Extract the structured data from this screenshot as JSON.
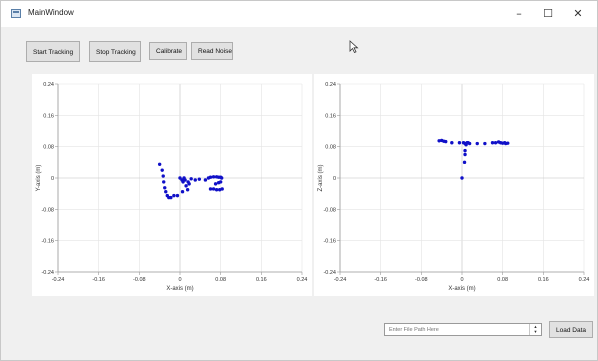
{
  "window": {
    "title": "MainWindow",
    "minimize_glyph": "–",
    "maximize_glyph": "☐",
    "close_glyph": "✕"
  },
  "toolbar": {
    "start_label": "Start Tracking",
    "stop_label": "Stop Tracking",
    "calibrate_label": "Calibrate",
    "read_noise_label": "Read Noise"
  },
  "icons": {
    "app": "app-window-icon",
    "cursor": "mouse-pointer-icon",
    "spin": "spin-arrows-icon"
  },
  "colors": {
    "points": "#1010c8",
    "grid": "#e4e4e4",
    "axis": "#999999",
    "zero_line": "#bfbfbf"
  },
  "chart_data": [
    {
      "type": "scatter",
      "xlabel": "X-axis (m)",
      "ylabel": "Y-axis (m)",
      "xlim": [
        -0.24,
        0.24
      ],
      "ylim": [
        -0.24,
        0.24
      ],
      "x_ticks": [
        "-0.24",
        "-0.16",
        "-0.08",
        "0",
        "0.08",
        "0.16",
        "0.24"
      ],
      "y_ticks": [
        "0.24",
        "0.16",
        "0.08",
        "0",
        "-0.08",
        "-0.16",
        "-0.24"
      ],
      "grid": true,
      "points": [
        [
          -0.04,
          0.035
        ],
        [
          -0.035,
          0.02
        ],
        [
          -0.033,
          0.005
        ],
        [
          -0.032,
          -0.01
        ],
        [
          -0.03,
          -0.025
        ],
        [
          -0.028,
          -0.035
        ],
        [
          -0.025,
          -0.045
        ],
        [
          -0.022,
          -0.05
        ],
        [
          -0.018,
          -0.05
        ],
        [
          -0.012,
          -0.045
        ],
        [
          -0.005,
          -0.045
        ],
        [
          0.0,
          0.0
        ],
        [
          0.004,
          -0.005
        ],
        [
          0.006,
          -0.01
        ],
        [
          0.008,
          0.0
        ],
        [
          0.01,
          -0.005
        ],
        [
          0.012,
          -0.02
        ],
        [
          0.016,
          -0.01
        ],
        [
          0.018,
          -0.015
        ],
        [
          0.022,
          -0.002
        ],
        [
          0.005,
          -0.035
        ],
        [
          0.015,
          -0.03
        ],
        [
          0.03,
          -0.005
        ],
        [
          0.038,
          -0.003
        ],
        [
          0.05,
          -0.005
        ],
        [
          0.056,
          0.0
        ],
        [
          0.06,
          0.002
        ],
        [
          0.066,
          0.003
        ],
        [
          0.072,
          0.003
        ],
        [
          0.076,
          0.002
        ],
        [
          0.08,
          0.002
        ],
        [
          0.082,
          0.0
        ],
        [
          0.07,
          -0.015
        ],
        [
          0.076,
          -0.012
        ],
        [
          0.08,
          -0.01
        ],
        [
          0.06,
          -0.028
        ],
        [
          0.066,
          -0.028
        ],
        [
          0.072,
          -0.03
        ],
        [
          0.078,
          -0.03
        ],
        [
          0.083,
          -0.028
        ]
      ]
    },
    {
      "type": "scatter",
      "xlabel": "X-axis (m)",
      "ylabel": "Z-axis (m)",
      "xlim": [
        -0.24,
        0.24
      ],
      "ylim": [
        -0.24,
        0.24
      ],
      "x_ticks": [
        "-0.24",
        "-0.16",
        "-0.08",
        "0",
        "0.08",
        "0.16",
        "0.24"
      ],
      "y_ticks": [
        "0.24",
        "0.16",
        "0.08",
        "0",
        "-0.08",
        "-0.16",
        "-0.24"
      ],
      "grid": true,
      "points": [
        [
          -0.045,
          0.095
        ],
        [
          -0.04,
          0.096
        ],
        [
          -0.036,
          0.094
        ],
        [
          -0.032,
          0.093
        ],
        [
          -0.02,
          0.09
        ],
        [
          -0.005,
          0.09
        ],
        [
          0.003,
          0.09
        ],
        [
          0.006,
          0.088
        ],
        [
          0.008,
          0.085
        ],
        [
          0.01,
          0.09
        ],
        [
          0.012,
          0.09
        ],
        [
          0.015,
          0.088
        ],
        [
          0.006,
          0.07
        ],
        [
          0.006,
          0.06
        ],
        [
          0.005,
          0.04
        ],
        [
          0.0,
          0.0
        ],
        [
          0.03,
          0.088
        ],
        [
          0.045,
          0.088
        ],
        [
          0.06,
          0.09
        ],
        [
          0.066,
          0.09
        ],
        [
          0.072,
          0.092
        ],
        [
          0.076,
          0.09
        ],
        [
          0.08,
          0.089
        ],
        [
          0.084,
          0.09
        ],
        [
          0.086,
          0.088
        ],
        [
          0.09,
          0.089
        ]
      ]
    }
  ],
  "file_path": {
    "value": "",
    "placeholder": "Enter File Path Here"
  },
  "load_label": "Load Data"
}
